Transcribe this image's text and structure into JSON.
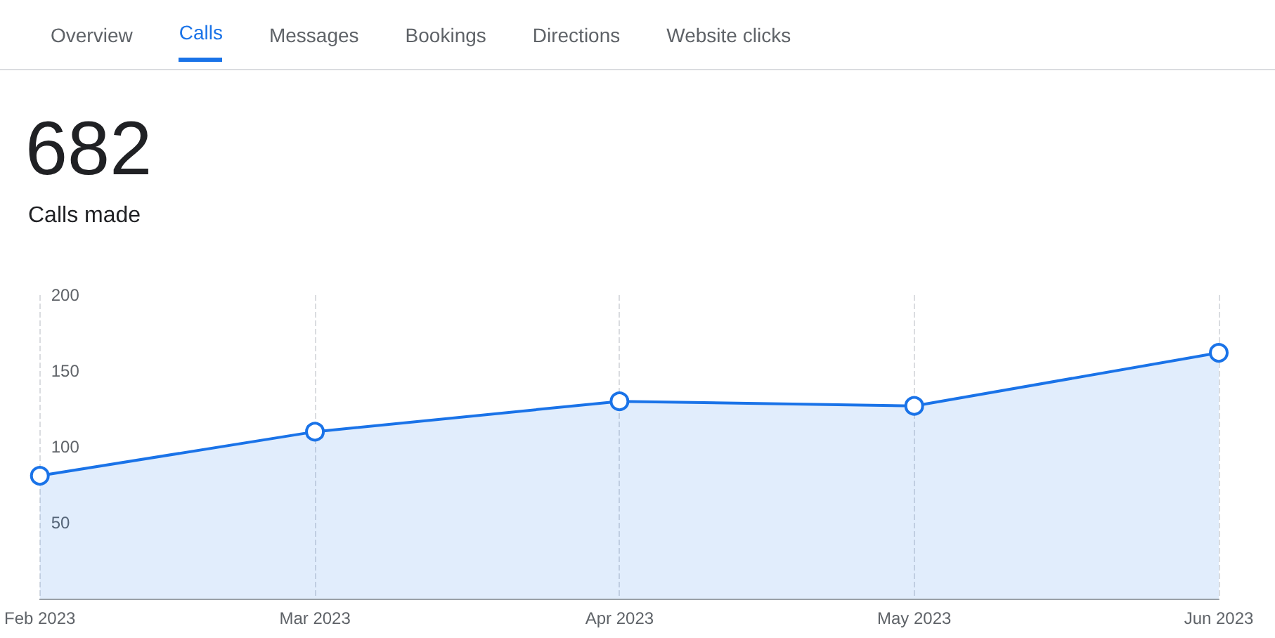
{
  "chart_data": {
    "type": "area",
    "title": "682",
    "subtitle": "Calls made",
    "annotations": [
      "Overview",
      "Calls",
      "Messages",
      "Bookings",
      "Directions",
      "Website clicks"
    ],
    "x": [
      "2023-02",
      "2023-03",
      "2023-04",
      "2023-05",
      "2023-06"
    ],
    "series": [
      {
        "color": "#1a73e8",
        "values": [
          81,
          110,
          130,
          127,
          162
        ]
      }
    ],
    "xlim": [
      "2023-02",
      "2023-06"
    ],
    "xticks": [
      {
        "value": "2023-02",
        "label": "Feb 2023"
      },
      {
        "value": "2023-03",
        "label": "Mar 2023"
      },
      {
        "value": "2023-04",
        "label": "Apr 2023"
      },
      {
        "value": "2023-05",
        "label": "May 2023"
      },
      {
        "value": "2023-06",
        "label": "Jun 2023"
      }
    ],
    "ylim": [
      0,
      200
    ],
    "yticks": [
      50,
      100,
      150,
      200
    ],
    "grid": "x",
    "marker": "circle",
    "line_style": "solid"
  }
}
